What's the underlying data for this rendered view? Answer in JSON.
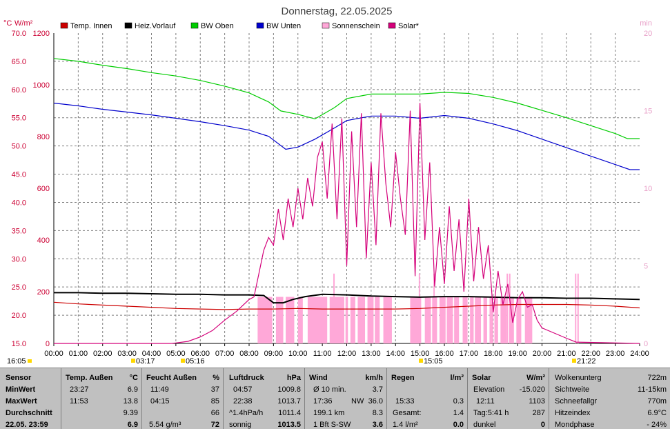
{
  "window": {
    "title": "Donnerstag, 22.05.2025"
  },
  "chart_data": {
    "type": "line",
    "title": "Donnerstag, 22.05.2025",
    "left_axis_units": [
      "°C",
      "W/m²"
    ],
    "right_axis_unit": "min",
    "temp_ticks": [
      "70.0",
      "65.0",
      "60.0",
      "55.0",
      "50.0",
      "45.0",
      "40.0",
      "35.0",
      "30.0",
      "25.0",
      "20.0",
      "15.0"
    ],
    "solar_ticks": [
      "1200",
      "1000",
      "800",
      "600",
      "400",
      "200",
      "0"
    ],
    "min_ticks": [
      "20",
      "15",
      "10",
      "5",
      "0"
    ],
    "x_ticks": [
      "00:00",
      "01:00",
      "02:00",
      "03:00",
      "04:00",
      "05:00",
      "06:00",
      "07:00",
      "08:00",
      "09:00",
      "10:00",
      "11:00",
      "12:00",
      "13:00",
      "14:00",
      "15:00",
      "16:00",
      "17:00",
      "18:00",
      "19:00",
      "20:00",
      "21:00",
      "22:00",
      "23:00",
      "24:00"
    ],
    "temp_ylim": [
      15,
      70
    ],
    "solar_ylim": [
      0,
      1200
    ],
    "min_ylim": [
      0,
      20
    ],
    "xlim_hours": [
      0,
      24
    ],
    "grid": true,
    "legend": [
      {
        "name": "Temp. Innen",
        "color": "#cc0000"
      },
      {
        "name": "Heiz.Vorlauf",
        "color": "#000000"
      },
      {
        "name": "BW Oben",
        "color": "#00cc00"
      },
      {
        "name": "BW Unten",
        "color": "#0000cc"
      },
      {
        "name": "Sonnenschein",
        "color": "#ffa8d8"
      },
      {
        "name": "Solar*",
        "color": "#d4007a"
      }
    ],
    "series": [
      {
        "name": "Temp. Innen",
        "axis": "temp",
        "color": "#cc0000",
        "x": [
          0,
          1,
          2,
          3,
          4,
          5,
          6,
          7,
          8,
          9,
          10,
          11,
          12,
          13,
          14,
          15,
          16,
          17,
          18,
          19,
          20,
          21,
          22,
          23,
          24
        ],
        "y": [
          22.3,
          22.0,
          21.8,
          21.6,
          21.4,
          21.2,
          21.1,
          21.0,
          21.1,
          21.1,
          21.2,
          21.1,
          21.1,
          21.1,
          21.1,
          21.2,
          21.4,
          21.6,
          21.8,
          21.9,
          21.9,
          21.9,
          21.8,
          21.6,
          21.3
        ]
      },
      {
        "name": "Heiz.Vorlauf",
        "axis": "temp",
        "color": "#000000",
        "x": [
          0,
          1,
          2,
          3,
          4,
          5,
          6,
          7,
          8,
          8.6,
          9,
          9.4,
          9.8,
          10.3,
          11,
          12,
          13,
          14,
          15,
          16,
          17,
          18,
          19,
          20,
          21,
          22,
          23,
          24
        ],
        "y": [
          24.0,
          24.0,
          23.9,
          23.9,
          23.8,
          23.7,
          23.7,
          23.6,
          23.6,
          23.5,
          22.2,
          22.2,
          22.8,
          23.3,
          23.7,
          23.6,
          23.4,
          23.3,
          23.2,
          23.3,
          23.3,
          23.2,
          23.1,
          23.1,
          23.0,
          23.0,
          22.9,
          22.8
        ]
      },
      {
        "name": "BW Oben",
        "axis": "temp",
        "color": "#00cc00",
        "x": [
          0,
          1,
          2,
          3,
          4,
          5,
          6,
          7,
          8,
          8.8,
          9.3,
          10,
          10.7,
          11.5,
          12,
          13,
          14,
          15,
          16,
          17,
          18,
          19,
          20,
          21,
          22,
          23,
          23.5,
          24
        ],
        "y": [
          65.5,
          65.0,
          64.3,
          63.7,
          63.0,
          62.4,
          61.6,
          60.6,
          59.4,
          57.8,
          56.2,
          55.6,
          54.8,
          56.8,
          58.4,
          59.2,
          59.2,
          59.2,
          59.5,
          59.3,
          58.6,
          57.6,
          56.3,
          55.0,
          53.6,
          52.2,
          51.3,
          51.3
        ]
      },
      {
        "name": "BW Unten",
        "axis": "temp",
        "color": "#0000cc",
        "x": [
          0,
          1,
          2,
          3,
          4,
          5,
          6,
          7,
          8,
          8.8,
          9.5,
          10,
          10.7,
          11.5,
          12,
          13,
          14,
          15,
          16,
          17,
          18,
          19,
          20,
          21,
          22,
          23,
          23.6,
          24
        ],
        "y": [
          57.6,
          57.1,
          56.5,
          56.0,
          55.5,
          54.9,
          54.3,
          53.6,
          52.8,
          51.7,
          49.4,
          49.8,
          51.2,
          53.2,
          54.5,
          55.3,
          55.3,
          54.9,
          55.4,
          54.9,
          53.9,
          52.7,
          51.2,
          49.7,
          48.2,
          46.7,
          45.8,
          45.8
        ]
      },
      {
        "name": "Solar*",
        "axis": "solar",
        "color": "#d4007a",
        "x": [
          0,
          4.8,
          5,
          5.5,
          6,
          6.5,
          7,
          7.5,
          8,
          8.2,
          8.4,
          8.6,
          8.8,
          9,
          9.2,
          9.4,
          9.6,
          9.8,
          10,
          10.2,
          10.4,
          10.6,
          10.8,
          11,
          11.2,
          11.4,
          11.6,
          11.8,
          12,
          12.2,
          12.4,
          12.6,
          12.8,
          13,
          13.2,
          13.4,
          13.6,
          13.8,
          14,
          14.2,
          14.4,
          14.6,
          14.8,
          15,
          15.2,
          15.4,
          15.6,
          15.8,
          16,
          16.2,
          16.4,
          16.6,
          16.8,
          17,
          17.2,
          17.4,
          17.6,
          17.8,
          18,
          18.2,
          18.4,
          18.6,
          18.8,
          19,
          19.2,
          19.4,
          19.6,
          19.8,
          20,
          20.5,
          21,
          21.4,
          24
        ],
        "y": [
          0,
          0,
          2,
          8,
          25,
          50,
          90,
          125,
          170,
          180,
          270,
          360,
          410,
          380,
          520,
          400,
          560,
          450,
          600,
          480,
          640,
          530,
          720,
          780,
          560,
          850,
          480,
          870,
          300,
          820,
          450,
          890,
          330,
          700,
          380,
          890,
          620,
          450,
          740,
          560,
          420,
          900,
          260,
          930,
          400,
          700,
          220,
          450,
          230,
          530,
          280,
          480,
          200,
          560,
          240,
          450,
          250,
          380,
          120,
          280,
          150,
          230,
          80,
          170,
          200,
          140,
          150,
          90,
          60,
          40,
          20,
          5,
          0
        ]
      },
      {
        "name": "Sonnenschein",
        "axis": "min",
        "color": "#ffa8d8",
        "bars_hours": [
          [
            8.35,
            8.95
          ],
          [
            9.1,
            9.4
          ],
          [
            9.5,
            9.85
          ],
          [
            10.0,
            10.2
          ],
          [
            10.4,
            11.2
          ],
          [
            11.3,
            11.9
          ],
          [
            11.95,
            12.05
          ],
          [
            12.15,
            12.35
          ],
          [
            12.45,
            12.75
          ],
          [
            12.85,
            13.1
          ],
          [
            13.15,
            13.35
          ],
          [
            13.5,
            13.85
          ],
          [
            14.6,
            15.05
          ],
          [
            15.2,
            15.45
          ],
          [
            15.5,
            15.7
          ],
          [
            15.8,
            16.05
          ],
          [
            16.1,
            16.35
          ],
          [
            16.4,
            16.6
          ],
          [
            16.75,
            16.95
          ],
          [
            17.05,
            17.2
          ],
          [
            17.25,
            17.5
          ],
          [
            17.6,
            17.75
          ],
          [
            17.85,
            18.0
          ],
          [
            18.05,
            18.2
          ],
          [
            18.3,
            18.55
          ],
          [
            18.65,
            18.85
          ],
          [
            18.95,
            19.15
          ],
          [
            19.3,
            19.6
          ]
        ],
        "bars_min": 3,
        "spikes_hours": [
          11.45,
          14.95,
          15.55,
          18.55,
          18.65,
          21.35,
          21.45
        ],
        "spikes_min": 4.5
      }
    ],
    "sun_events": [
      {
        "label": "03:17"
      },
      {
        "label": "05:16"
      },
      {
        "label": "15:05"
      },
      {
        "label": "21:22"
      }
    ]
  },
  "panel": {
    "sensor": {
      "h": "Sensor",
      "r1": "MinWert",
      "r2": "MaxWert",
      "r3": "Durchschnitt",
      "r4": "22.05. 23:59"
    },
    "temp": {
      "h": "Temp. Außen",
      "u": "°C",
      "min_t": "23:27",
      "min_v": "6.9",
      "max_t": "11:53",
      "max_v": "13.8",
      "avg": "9.39",
      "cur": "6.9"
    },
    "hum": {
      "h": "Feucht Außen",
      "u": "%",
      "min_t": "11:49",
      "min_v": "37",
      "max_t": "04:15",
      "max_v": "85",
      "avg": "66",
      "abs": "5.54 g/m³",
      "cur": "72"
    },
    "press": {
      "h": "Luftdruck",
      "u": "hPa",
      "min_t": "04:57",
      "min_v": "1009.8",
      "max_t": "22:38",
      "max_v": "1013.7",
      "trend": "^1.4hPa/h",
      "avg": "1011.4",
      "desc": "sonnig",
      "cur": "1013.5"
    },
    "wind": {
      "h": "Wind",
      "u": "km/h",
      "r1l": "Ø 10 min.",
      "r1v": "3.7",
      "r2l": "17:36",
      "r2m": "NW",
      "r2v": "36.0",
      "r3l": "199.1 km",
      "r3v": "8.3",
      "r4l": "1 Bft S-SW",
      "r4v": "3.6"
    },
    "rain": {
      "h": "Regen",
      "u": "l/m²",
      "r2l": "15:33",
      "r2v": "0.3",
      "r3l": "Gesamt:",
      "r3v": "1.4",
      "r4l": "1.4 l/m²",
      "r4v": "0.0"
    },
    "solar": {
      "h": "Solar",
      "u": "W/m²",
      "r1l": "Elevation",
      "r1v": "-15.020",
      "r2l": "12:11",
      "r2v": "1103",
      "r3l": "Tag:5:41 h",
      "r3v": "287",
      "r4l": "dunkel",
      "r4v": "0"
    },
    "misc": [
      {
        "l": "Wolkenunterg",
        "v": "722m"
      },
      {
        "l": "Sichtweite",
        "v": "11-15km"
      },
      {
        "l": "Schneefallgr",
        "v": "770m"
      },
      {
        "l": "Hitzeindex",
        "v": "6.9°C"
      },
      {
        "l": "Mondphase",
        "v": "- 24%"
      }
    ]
  }
}
